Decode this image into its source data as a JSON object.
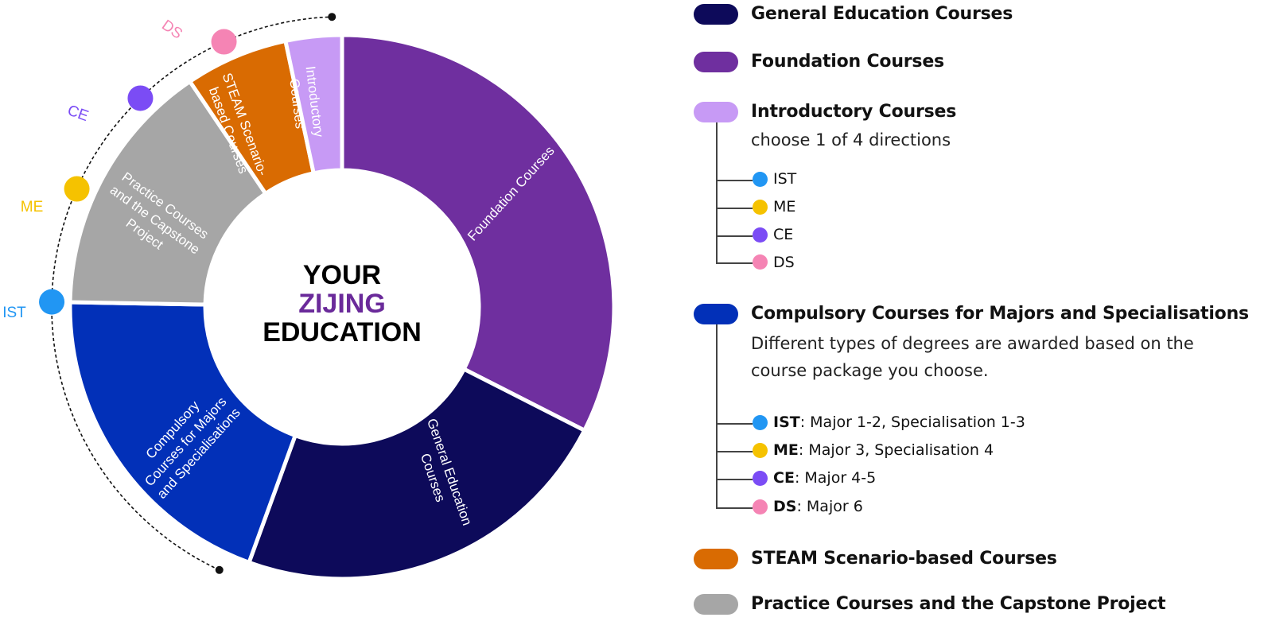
{
  "center": {
    "line1": "YOUR",
    "line2": "ZIJING",
    "line3": "EDUCATION",
    "line1_color": "#000000",
    "line2_color": "#6a2a9a",
    "line3_color": "#000000"
  },
  "segments": [
    {
      "key": "foundation",
      "color": "#6f2f9f",
      "label": [
        "Foundation Courses"
      ]
    },
    {
      "key": "general",
      "color": "#0d0a5a",
      "label": [
        "General Education",
        "Courses"
      ]
    },
    {
      "key": "compulsory",
      "color": "#0230b8",
      "label": [
        "Compulsory",
        "Courses for Majors",
        "and Specialisations"
      ]
    },
    {
      "key": "practice",
      "color": "#a6a6a6",
      "label": [
        "Practice Courses",
        "and the Capstone",
        "Project"
      ]
    },
    {
      "key": "steam",
      "color": "#d96b02",
      "label": [
        "STEAM Scenario-",
        "based Courses"
      ]
    },
    {
      "key": "introductory",
      "color": "#c79af5",
      "label": [
        "Introductory",
        "Courses"
      ]
    }
  ],
  "track_markers": [
    {
      "label": "IST",
      "color": "#2196f3"
    },
    {
      "label": "ME",
      "color": "#f5c200"
    },
    {
      "label": "CE",
      "color": "#7b4cf5"
    },
    {
      "label": "DS",
      "color": "#f584b4"
    }
  ],
  "legend": {
    "general": {
      "title": "General Education Courses",
      "color": "#0d0a5a"
    },
    "foundation": {
      "title": "Foundation Courses",
      "color": "#6f2f9f"
    },
    "introductory": {
      "title": "Introductory Courses",
      "color": "#c79af5",
      "subtitle": "choose 1 of 4 directions",
      "items": [
        {
          "label": "IST",
          "color": "#2196f3"
        },
        {
          "label": "ME",
          "color": "#f5c200"
        },
        {
          "label": "CE",
          "color": "#7b4cf5"
        },
        {
          "label": "DS",
          "color": "#f584b4"
        }
      ]
    },
    "compulsory": {
      "title": "Compulsory Courses for Majors and Specialisations",
      "color": "#0230b8",
      "subtitle_line1": "Different types of degrees are awarded based on the",
      "subtitle_line2": "course package you choose.",
      "items": [
        {
          "code": "IST",
          "desc": ": Major 1-2, Specialisation 1-3",
          "color": "#2196f3"
        },
        {
          "code": "ME",
          "desc": ": Major 3, Specialisation 4",
          "color": "#f5c200"
        },
        {
          "code": "CE",
          "desc": ": Major 4-5",
          "color": "#7b4cf5"
        },
        {
          "code": "DS",
          "desc": ": Major 6",
          "color": "#f584b4"
        }
      ]
    },
    "steam": {
      "title": "STEAM Scenario-based Courses",
      "color": "#d96b02"
    },
    "practice": {
      "title": "Practice Courses and the Capstone Project",
      "color": "#a6a6a6"
    }
  }
}
